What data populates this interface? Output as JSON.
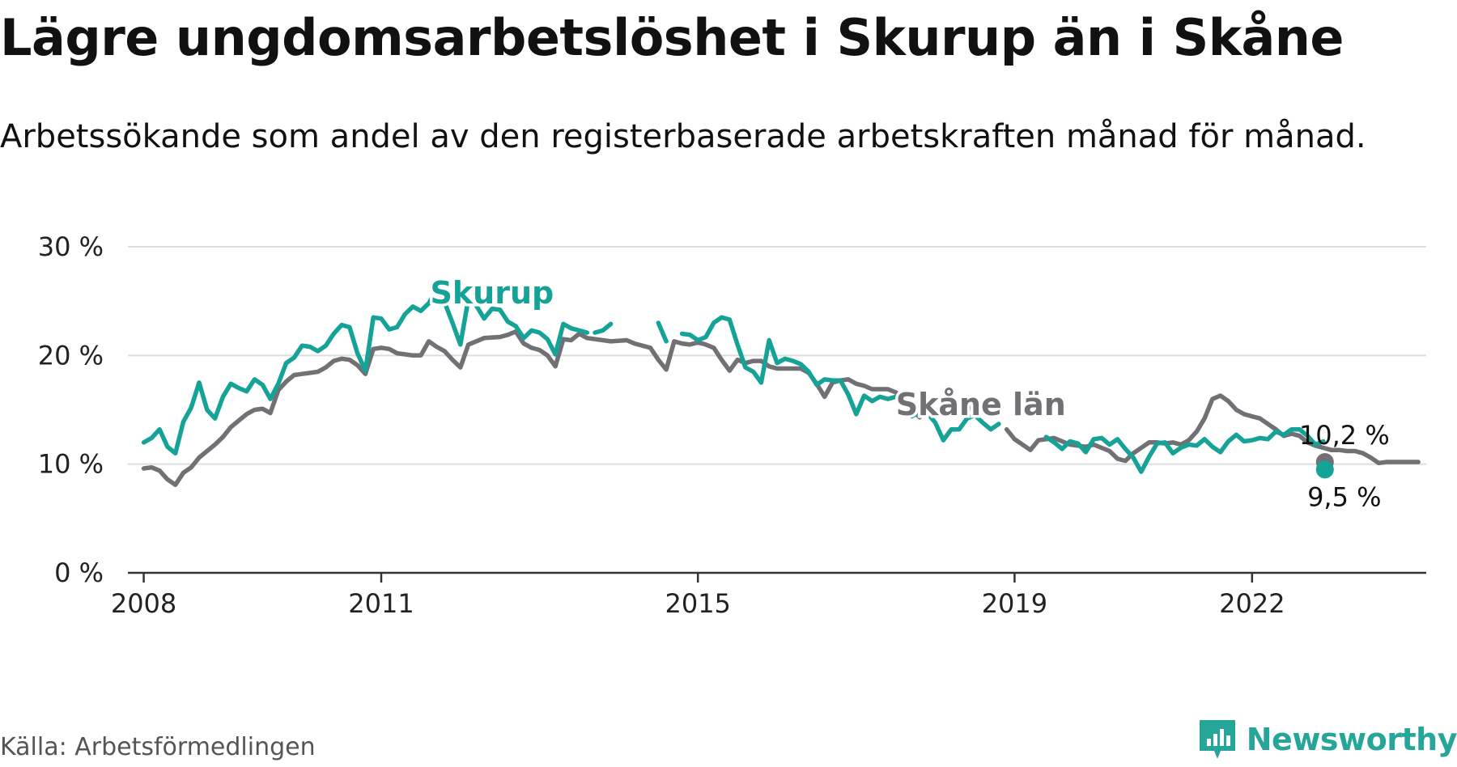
{
  "title": "Lägre ungdomsarbetslöshet i Skurup än i Skåne",
  "subtitle": "Arbetssökande som andel av den registerbaserade arbetskraften månad för månad.",
  "source": "Källa: Arbetsförmedlingen",
  "brand": "Newsworthy",
  "colors": {
    "skurup": "#15a297",
    "skane": "#707075",
    "grid": "#dddddd",
    "axis": "#333333",
    "brand": "#26a699"
  },
  "chart_data": {
    "type": "line",
    "title": "Lägre ungdomsarbetslöshet i Skurup än i Skåne",
    "xlabel": "",
    "ylabel": "",
    "ylim": [
      0,
      30
    ],
    "xlim": [
      2007.8,
      2024.2
    ],
    "yticks": [
      0,
      10,
      20,
      30
    ],
    "ytick_labels": [
      "0 %",
      "10 %",
      "20 %",
      "30 %"
    ],
    "xticks": [
      2008,
      2011,
      2015,
      2019,
      2022
    ],
    "xtick_labels": [
      "2008",
      "2011",
      "2015",
      "2019",
      "2022"
    ],
    "grid": true,
    "series": [
      {
        "name": "Skåne län",
        "key": "skane",
        "label_x": 2017.5,
        "label_y": 14.5,
        "end_label": "10,2 %",
        "end_value": 10.2,
        "end_x": 2022.92,
        "points": [
          [
            2008.0,
            9.6
          ],
          [
            2008.1,
            9.7
          ],
          [
            2008.2,
            9.4
          ],
          [
            2008.3,
            8.6
          ],
          [
            2008.4,
            8.1
          ],
          [
            2008.5,
            9.2
          ],
          [
            2008.6,
            9.7
          ],
          [
            2008.7,
            10.6
          ],
          [
            2008.8,
            11.2
          ],
          [
            2008.9,
            11.8
          ],
          [
            2009.0,
            12.5
          ],
          [
            2009.1,
            13.4
          ],
          [
            2009.2,
            14.0
          ],
          [
            2009.3,
            14.6
          ],
          [
            2009.4,
            15.0
          ],
          [
            2009.5,
            15.1
          ],
          [
            2009.6,
            14.7
          ],
          [
            2009.7,
            16.8
          ],
          [
            2009.8,
            17.6
          ],
          [
            2009.9,
            18.2
          ],
          [
            2010.0,
            18.3
          ],
          [
            2010.2,
            18.5
          ],
          [
            2010.3,
            18.9
          ],
          [
            2010.4,
            19.5
          ],
          [
            2010.5,
            19.7
          ],
          [
            2010.6,
            19.6
          ],
          [
            2010.7,
            19.1
          ],
          [
            2010.8,
            18.3
          ],
          [
            2010.9,
            20.6
          ],
          [
            2011.0,
            20.7
          ],
          [
            2011.1,
            20.6
          ],
          [
            2011.2,
            20.2
          ],
          [
            2011.4,
            20.0
          ],
          [
            2011.5,
            20.0
          ],
          [
            2011.6,
            21.3
          ],
          [
            2011.7,
            20.8
          ],
          [
            2011.8,
            20.4
          ],
          [
            2011.9,
            19.6
          ],
          [
            2012.0,
            18.9
          ],
          [
            2012.1,
            21.0
          ],
          [
            2012.2,
            21.3
          ],
          [
            2012.3,
            21.6
          ],
          [
            2012.5,
            21.7
          ],
          [
            2012.6,
            21.9
          ],
          [
            2012.7,
            22.2
          ],
          [
            2012.8,
            21.1
          ],
          [
            2012.9,
            20.7
          ],
          [
            2013.0,
            20.5
          ],
          [
            2013.1,
            20.0
          ],
          [
            2013.2,
            19.0
          ],
          [
            2013.3,
            21.5
          ],
          [
            2013.4,
            21.4
          ],
          [
            2013.5,
            22.0
          ],
          [
            2013.6,
            21.6
          ],
          [
            2013.8,
            21.4
          ],
          [
            2013.9,
            21.3
          ],
          [
            2014.1,
            21.4
          ],
          [
            2014.2,
            21.1
          ],
          [
            2014.4,
            20.7
          ],
          [
            2014.5,
            19.6
          ],
          [
            2014.6,
            18.7
          ],
          [
            2014.7,
            21.3
          ],
          [
            2014.8,
            21.1
          ],
          [
            2014.9,
            21.0
          ],
          [
            2015.0,
            21.2
          ],
          [
            2015.1,
            21.0
          ],
          [
            2015.2,
            20.7
          ],
          [
            2015.3,
            19.6
          ],
          [
            2015.4,
            18.6
          ],
          [
            2015.5,
            19.6
          ],
          [
            2015.6,
            19.3
          ],
          [
            2015.7,
            19.5
          ],
          [
            2015.8,
            19.5
          ],
          [
            2015.9,
            19.0
          ],
          [
            2016.0,
            18.8
          ],
          [
            2016.2,
            18.8
          ],
          [
            2016.3,
            18.8
          ],
          [
            2016.4,
            18.4
          ],
          [
            2016.5,
            17.4
          ],
          [
            2016.6,
            16.2
          ],
          [
            2016.7,
            17.5
          ],
          [
            2016.8,
            17.7
          ],
          [
            2016.9,
            17.8
          ],
          [
            2017.0,
            17.4
          ],
          [
            2017.1,
            17.2
          ],
          [
            2017.2,
            16.9
          ],
          [
            2017.4,
            16.9
          ],
          [
            2017.5,
            16.6
          ],
          [
            2017.6,
            16.0
          ],
          [
            2017.7,
            15.1
          ],
          [
            2017.8,
            14.3
          ],
          [
            2017.9,
            15.0
          ],
          [
            2018.0,
            14.9
          ],
          [
            2018.2,
            15.1
          ],
          [
            2018.3,
            14.9
          ],
          [
            2018.4,
            15.3
          ],
          [
            2018.5,
            15.0
          ]
        ],
        "points_late": [
          [
            2018.9,
            13.2
          ],
          [
            2019.0,
            12.3
          ],
          [
            2019.1,
            11.8
          ],
          [
            2019.2,
            11.3
          ],
          [
            2019.3,
            12.2
          ],
          [
            2019.4,
            12.3
          ],
          [
            2019.5,
            12.4
          ],
          [
            2019.6,
            12.1
          ],
          [
            2019.7,
            11.8
          ],
          [
            2019.8,
            11.7
          ],
          [
            2019.9,
            11.6
          ],
          [
            2020.0,
            11.8
          ],
          [
            2020.1,
            11.5
          ],
          [
            2020.2,
            11.2
          ],
          [
            2020.3,
            10.5
          ],
          [
            2020.4,
            10.3
          ],
          [
            2020.5,
            11.0
          ],
          [
            2020.6,
            11.5
          ],
          [
            2020.7,
            12.0
          ],
          [
            2020.8,
            12.0
          ],
          [
            2020.9,
            11.9
          ],
          [
            2021.0,
            12.0
          ],
          [
            2021.1,
            11.8
          ],
          [
            2021.2,
            12.2
          ],
          [
            2021.3,
            13.0
          ],
          [
            2021.4,
            14.2
          ],
          [
            2021.5,
            16.0
          ],
          [
            2021.6,
            16.3
          ],
          [
            2021.7,
            15.8
          ],
          [
            2021.8,
            15.0
          ],
          [
            2021.9,
            14.6
          ],
          [
            2022.0,
            14.4
          ],
          [
            2022.1,
            14.2
          ],
          [
            2022.2,
            13.7
          ],
          [
            2022.3,
            13.2
          ],
          [
            2022.4,
            12.6
          ],
          [
            2022.5,
            12.8
          ],
          [
            2022.6,
            12.6
          ],
          [
            2022.7,
            12.0
          ],
          [
            2022.8,
            11.7
          ],
          [
            2022.9,
            11.5
          ],
          [
            2023.0,
            11.3
          ],
          [
            2023.1,
            11.3
          ],
          [
            2023.2,
            11.2
          ],
          [
            2023.3,
            11.2
          ],
          [
            2023.4,
            11.0
          ],
          [
            2023.5,
            10.6
          ],
          [
            2023.6,
            10.1
          ],
          [
            2023.7,
            10.2
          ],
          [
            2023.8,
            10.2
          ],
          [
            2023.9,
            10.2
          ],
          [
            2024.0,
            10.2
          ],
          [
            2024.1,
            10.2
          ]
        ]
      },
      {
        "name": "Skurup",
        "key": "skurup",
        "label_x": 2012.4,
        "label_y": 24.8,
        "end_label": "9,5 %",
        "end_value": 9.5,
        "end_x": 2022.92,
        "points": [
          [
            2008.0,
            12.0
          ],
          [
            2008.1,
            12.4
          ],
          [
            2008.2,
            13.2
          ],
          [
            2008.3,
            11.6
          ],
          [
            2008.4,
            11.0
          ],
          [
            2008.5,
            13.9
          ],
          [
            2008.6,
            15.2
          ],
          [
            2008.7,
            17.5
          ],
          [
            2008.8,
            15.0
          ],
          [
            2008.9,
            14.2
          ],
          [
            2009.0,
            16.2
          ],
          [
            2009.1,
            17.4
          ],
          [
            2009.2,
            17.0
          ],
          [
            2009.3,
            16.7
          ],
          [
            2009.4,
            17.8
          ],
          [
            2009.5,
            17.3
          ],
          [
            2009.6,
            16.0
          ],
          [
            2009.7,
            17.4
          ],
          [
            2009.8,
            19.3
          ],
          [
            2009.9,
            19.8
          ],
          [
            2010.0,
            20.9
          ],
          [
            2010.1,
            20.8
          ],
          [
            2010.2,
            20.4
          ],
          [
            2010.3,
            20.9
          ],
          [
            2010.4,
            22.0
          ],
          [
            2010.5,
            22.8
          ],
          [
            2010.6,
            22.6
          ],
          [
            2010.7,
            20.2
          ],
          [
            2010.8,
            18.6
          ],
          [
            2010.9,
            23.5
          ],
          [
            2011.0,
            23.4
          ],
          [
            2011.1,
            22.4
          ],
          [
            2011.2,
            22.6
          ],
          [
            2011.3,
            23.8
          ],
          [
            2011.4,
            24.5
          ],
          [
            2011.5,
            24.1
          ],
          [
            2011.6,
            24.8
          ],
          [
            2011.7,
            26.1
          ],
          [
            2011.8,
            24.9
          ],
          [
            2011.9,
            23.0
          ],
          [
            2012.0,
            21.0
          ],
          [
            2012.1,
            25.2
          ],
          [
            2012.2,
            24.6
          ],
          [
            2012.3,
            23.4
          ],
          [
            2012.4,
            24.3
          ],
          [
            2012.5,
            24.2
          ],
          [
            2012.6,
            23.1
          ],
          [
            2012.7,
            22.7
          ],
          [
            2012.8,
            21.6
          ],
          [
            2012.9,
            22.3
          ],
          [
            2013.0,
            22.1
          ],
          [
            2013.1,
            21.5
          ],
          [
            2013.2,
            20.1
          ],
          [
            2013.3,
            22.9
          ],
          [
            2013.4,
            22.5
          ],
          [
            2013.5,
            22.3
          ],
          [
            2013.6,
            22.1
          ]
        ],
        "points_b": [
          [
            2013.7,
            22.1
          ],
          [
            2013.8,
            22.3
          ],
          [
            2013.9,
            22.9
          ]
        ],
        "points_c": [
          [
            2014.5,
            23.0
          ],
          [
            2014.6,
            21.3
          ]
        ],
        "points_d": [
          [
            2014.8,
            22.0
          ],
          [
            2014.9,
            21.9
          ],
          [
            2015.0,
            21.4
          ],
          [
            2015.1,
            21.7
          ],
          [
            2015.2,
            23.0
          ],
          [
            2015.3,
            23.5
          ],
          [
            2015.4,
            23.3
          ],
          [
            2015.5,
            21.0
          ],
          [
            2015.6,
            18.9
          ],
          [
            2015.7,
            18.5
          ],
          [
            2015.8,
            17.5
          ],
          [
            2015.9,
            21.4
          ],
          [
            2016.0,
            19.3
          ],
          [
            2016.1,
            19.7
          ],
          [
            2016.2,
            19.5
          ],
          [
            2016.3,
            19.2
          ],
          [
            2016.4,
            18.5
          ],
          [
            2016.5,
            17.3
          ],
          [
            2016.6,
            17.8
          ],
          [
            2016.7,
            17.7
          ],
          [
            2016.8,
            17.7
          ],
          [
            2016.9,
            16.4
          ],
          [
            2017.0,
            14.6
          ],
          [
            2017.1,
            16.3
          ],
          [
            2017.2,
            15.8
          ],
          [
            2017.3,
            16.2
          ],
          [
            2017.4,
            16.0
          ],
          [
            2017.5,
            16.2
          ],
          [
            2017.6,
            15.6
          ],
          [
            2017.7,
            14.4
          ],
          [
            2017.8,
            14.8
          ],
          [
            2017.9,
            14.7
          ],
          [
            2018.0,
            13.8
          ],
          [
            2018.1,
            12.2
          ],
          [
            2018.2,
            13.2
          ],
          [
            2018.3,
            13.2
          ],
          [
            2018.4,
            14.2
          ],
          [
            2018.5,
            14.5
          ],
          [
            2018.6,
            13.8
          ],
          [
            2018.7,
            13.2
          ],
          [
            2018.8,
            13.7
          ]
        ],
        "points_late": [
          [
            2019.4,
            12.5
          ],
          [
            2019.5,
            12.0
          ],
          [
            2019.6,
            11.4
          ],
          [
            2019.7,
            12.1
          ],
          [
            2019.8,
            11.9
          ],
          [
            2019.9,
            11.1
          ],
          [
            2020.0,
            12.3
          ],
          [
            2020.1,
            12.4
          ],
          [
            2020.2,
            11.8
          ],
          [
            2020.3,
            12.3
          ],
          [
            2020.4,
            11.4
          ],
          [
            2020.5,
            10.6
          ],
          [
            2020.6,
            9.3
          ],
          [
            2020.7,
            10.7
          ],
          [
            2020.8,
            11.9
          ],
          [
            2020.9,
            12.0
          ],
          [
            2021.0,
            11.0
          ],
          [
            2021.1,
            11.5
          ],
          [
            2021.2,
            11.8
          ],
          [
            2021.3,
            11.7
          ],
          [
            2021.4,
            12.3
          ],
          [
            2021.5,
            11.6
          ],
          [
            2021.6,
            11.1
          ],
          [
            2021.7,
            12.1
          ],
          [
            2021.8,
            12.7
          ],
          [
            2021.9,
            12.1
          ],
          [
            2022.0,
            12.2
          ],
          [
            2022.1,
            12.4
          ],
          [
            2022.2,
            12.3
          ],
          [
            2022.3,
            13.0
          ],
          [
            2022.4,
            12.7
          ],
          [
            2022.5,
            13.2
          ],
          [
            2022.6,
            13.2
          ],
          [
            2022.7,
            12.6
          ],
          [
            2022.8,
            11.8
          ],
          [
            2022.9,
            12.1
          ]
        ]
      }
    ]
  }
}
